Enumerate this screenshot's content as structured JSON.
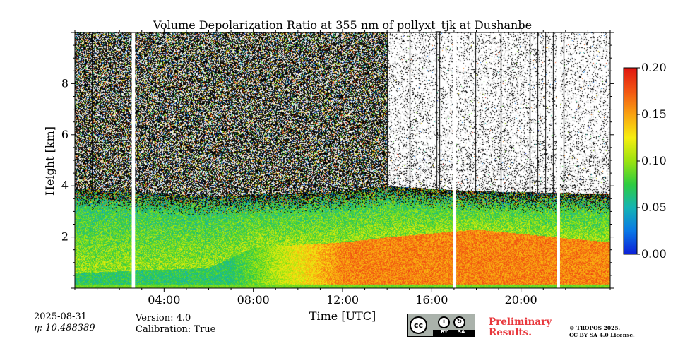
{
  "chart_data": {
    "type": "heatmap",
    "title": "Volume Depolarization Ratio at 355 nm of pollyxt_tjk at Dushanbe",
    "xlabel": "Time [UTC]",
    "ylabel": "Height [km]",
    "xlim_hours": [
      0,
      24
    ],
    "ylim_km": [
      0,
      10
    ],
    "x_ticks": [
      {
        "hour": 4,
        "label": "04:00"
      },
      {
        "hour": 8,
        "label": "08:00"
      },
      {
        "hour": 12,
        "label": "12:00"
      },
      {
        "hour": 16,
        "label": "16:00"
      },
      {
        "hour": 20,
        "label": "20:00"
      }
    ],
    "y_ticks": [
      {
        "km": 2,
        "label": "2"
      },
      {
        "km": 4,
        "label": "4"
      },
      {
        "km": 6,
        "label": "6"
      },
      {
        "km": 8,
        "label": "8"
      }
    ],
    "colorbar": {
      "min": 0.0,
      "max": 0.2,
      "ticks": [
        {
          "value": 0.0,
          "label": "0.00"
        },
        {
          "value": 0.05,
          "label": "0.05"
        },
        {
          "value": 0.1,
          "label": "0.10"
        },
        {
          "value": 0.15,
          "label": "0.15"
        },
        {
          "value": 0.2,
          "label": "0.20"
        }
      ],
      "colormap": [
        "#0c1fd8",
        "#0a78e6",
        "#14b4b4",
        "#2ecc40",
        "#9be310",
        "#f6ee10",
        "#f9a211",
        "#f25512",
        "#e01510"
      ]
    },
    "data_gaps_hours": [
      [
        2.55,
        2.7
      ],
      [
        16.95,
        17.1
      ],
      [
        21.6,
        21.75
      ]
    ],
    "signal_loss_lines_hours": [
      0.45,
      0.75,
      14.0,
      15.0,
      16.2,
      16.35,
      17.95,
      19.1,
      20.4,
      20.75,
      21.1,
      21.45,
      21.9
    ],
    "profile": {
      "aerosol_top_km": [
        {
          "hour": 0,
          "km": 3.9
        },
        {
          "hour": 2,
          "km": 3.8
        },
        {
          "hour": 6,
          "km": 3.6
        },
        {
          "hour": 12,
          "km": 3.8
        },
        {
          "hour": 14,
          "km": 4.0
        },
        {
          "hour": 18,
          "km": 3.8
        },
        {
          "hour": 24,
          "km": 3.7
        }
      ],
      "dust_layer_top_km": [
        {
          "hour": 0,
          "km": 0.6
        },
        {
          "hour": 6,
          "km": 0.8
        },
        {
          "hour": 8,
          "km": 1.6
        },
        {
          "hour": 12,
          "km": 1.8
        },
        {
          "hour": 14,
          "km": 2.0
        },
        {
          "hour": 18,
          "km": 2.3
        },
        {
          "hour": 24,
          "km": 1.8
        }
      ],
      "noisy_until_hour": 14.0,
      "sparse_noise_density": 0.12,
      "dense_noise_density": 0.7
    }
  },
  "info": {
    "date": "2025-08-31",
    "eta_label": "η: 10.488389",
    "version": "Version: 4.0",
    "calibration": "Calibration: True",
    "preliminary_line1": "Preliminary",
    "preliminary_line2": "Results.",
    "copyright_line1": "© TROPOS 2025.",
    "copyright_line2": "CC BY SA 4.0 License.",
    "license_badge": {
      "cc": "cc",
      "by": "BY",
      "sa": "SA"
    }
  }
}
